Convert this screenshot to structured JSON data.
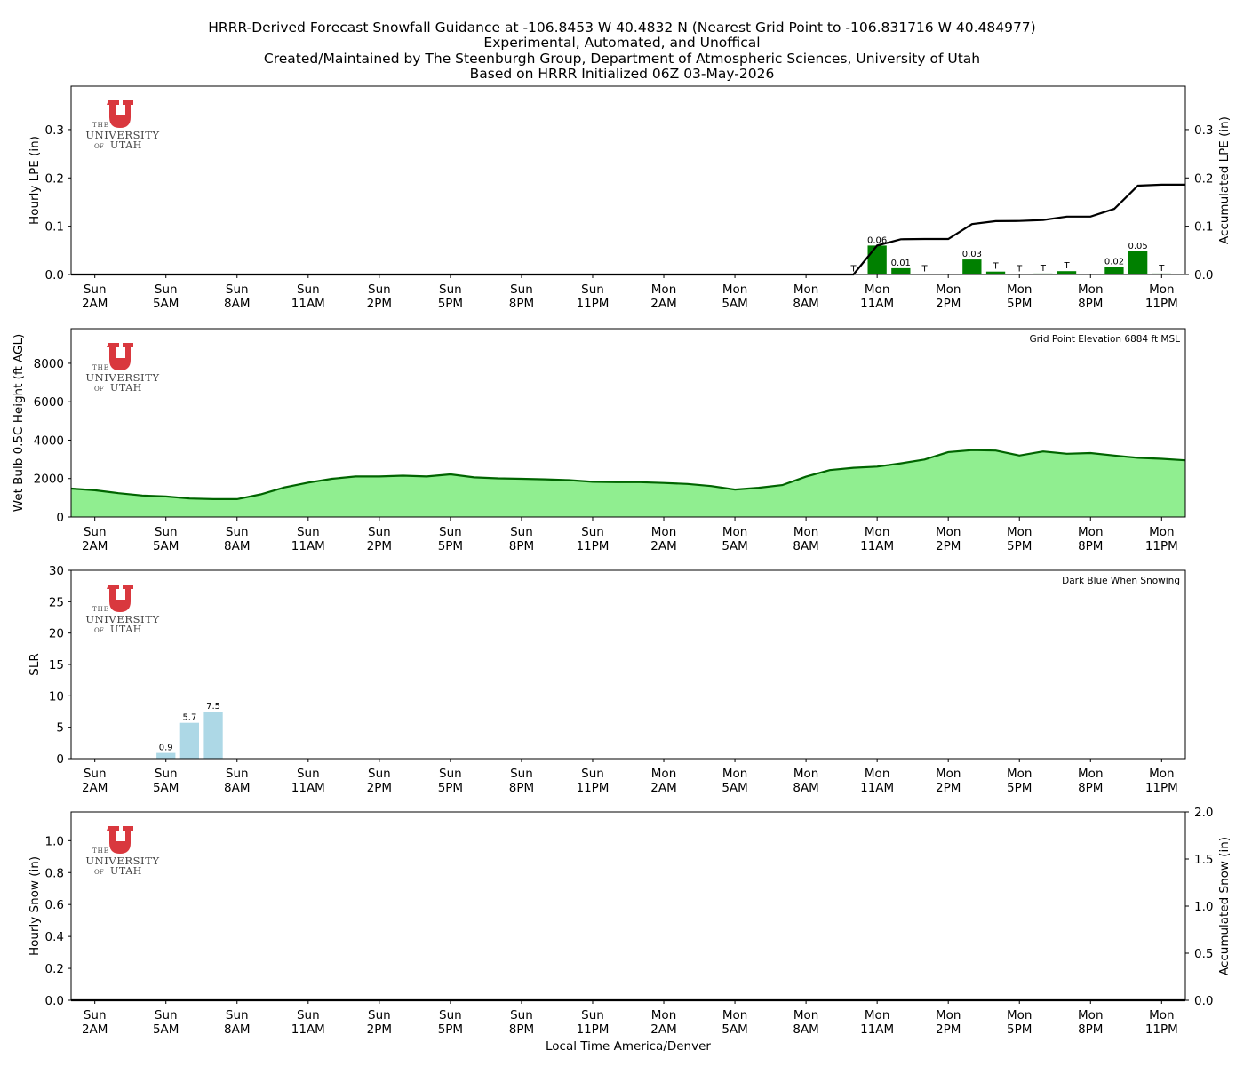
{
  "title_lines": [
    "HRRR-Derived Forecast Snowfall Guidance at -106.8453 W 40.4832 N (Nearest Grid Point to -106.831716 W 40.484977)",
    "Experimental, Automated, and Unoffical",
    "Created/Maintained by The Steenburgh Group, Department of Atmospheric Sciences, University of Utah",
    "Based on HRRR Initialized 06Z 03-May-2026"
  ],
  "logo": {
    "the": "THE",
    "university": "UNIVERSITY",
    "of": "OF",
    "utah": "UTAH",
    "color": "#d9383e"
  },
  "xlabel": "Local Time America/Denver",
  "x_ticks": [
    {
      "hour": 0,
      "day": "Sun",
      "time": "2AM"
    },
    {
      "hour": 3,
      "day": "Sun",
      "time": "5AM"
    },
    {
      "hour": 6,
      "day": "Sun",
      "time": "8AM"
    },
    {
      "hour": 9,
      "day": "Sun",
      "time": "11AM"
    },
    {
      "hour": 12,
      "day": "Sun",
      "time": "2PM"
    },
    {
      "hour": 15,
      "day": "Sun",
      "time": "5PM"
    },
    {
      "hour": 18,
      "day": "Sun",
      "time": "8PM"
    },
    {
      "hour": 21,
      "day": "Sun",
      "time": "11PM"
    },
    {
      "hour": 24,
      "day": "Mon",
      "time": "2AM"
    },
    {
      "hour": 27,
      "day": "Mon",
      "time": "5AM"
    },
    {
      "hour": 30,
      "day": "Mon",
      "time": "8AM"
    },
    {
      "hour": 33,
      "day": "Mon",
      "time": "11AM"
    },
    {
      "hour": 36,
      "day": "Mon",
      "time": "2PM"
    },
    {
      "hour": 39,
      "day": "Mon",
      "time": "5PM"
    },
    {
      "hour": 42,
      "day": "Mon",
      "time": "8PM"
    },
    {
      "hour": 45,
      "day": "Mon",
      "time": "11PM"
    }
  ],
  "chart_data": [
    {
      "type": "bar",
      "ylabel": "Hourly LPE (in)",
      "ylabel_right": "Accumulated LPE (in)",
      "xlim": [
        -1,
        46
      ],
      "ylim": [
        0,
        0.39
      ],
      "yticks": [
        0.0,
        0.1,
        0.2,
        0.3
      ],
      "ytick_labels": [
        "0.0",
        "0.1",
        "0.2",
        "0.3"
      ],
      "ylim_right": [
        0,
        0.39
      ],
      "yticks_right": [
        0.0,
        0.1,
        0.2,
        0.3
      ],
      "ytick_labels_right": [
        "0.0",
        "0.1",
        "0.2",
        "0.3"
      ],
      "bar_color": "#008000",
      "line_color": "#000000",
      "bars": [
        {
          "hour": 32,
          "value": 0.001,
          "label": "T"
        },
        {
          "hour": 33,
          "value": 0.06,
          "label": "0.06"
        },
        {
          "hour": 34,
          "value": 0.013,
          "label": "0.01"
        },
        {
          "hour": 35,
          "value": 0.0005,
          "label": "T"
        },
        {
          "hour": 37,
          "value": 0.031,
          "label": "0.03"
        },
        {
          "hour": 38,
          "value": 0.006,
          "label": "T"
        },
        {
          "hour": 39,
          "value": 0.0005,
          "label": "T"
        },
        {
          "hour": 40,
          "value": 0.002,
          "label": "T"
        },
        {
          "hour": 41,
          "value": 0.007,
          "label": "T"
        },
        {
          "hour": 43,
          "value": 0.016,
          "label": "0.02"
        },
        {
          "hour": 44,
          "value": 0.048,
          "label": "0.05"
        },
        {
          "hour": 45,
          "value": 0.002,
          "label": "T"
        }
      ],
      "accum_x": [
        -1,
        32,
        33,
        34,
        35,
        36,
        37,
        38,
        39,
        40,
        41,
        42,
        43,
        44,
        45,
        46
      ],
      "accum_y": [
        0,
        0,
        0.06,
        0.073,
        0.0735,
        0.0735,
        0.1045,
        0.1105,
        0.111,
        0.113,
        0.12,
        0.12,
        0.136,
        0.184,
        0.186,
        0.186
      ]
    },
    {
      "type": "area",
      "ylabel": "Wet Bulb 0.5C Height (ft AGL)",
      "annotation": "Grid Point Elevation 6884 ft MSL",
      "xlim": [
        -1,
        46
      ],
      "ylim": [
        0,
        9800
      ],
      "yticks": [
        0,
        2000,
        4000,
        6000,
        8000
      ],
      "ytick_labels": [
        "0",
        "2000",
        "4000",
        "6000",
        "8000"
      ],
      "fill_color": "#90ee90",
      "line_color": "#006400",
      "x": [
        -1,
        0,
        1,
        2,
        3,
        4,
        5,
        6,
        7,
        8,
        9,
        10,
        11,
        12,
        13,
        14,
        15,
        16,
        17,
        18,
        19,
        20,
        21,
        22,
        23,
        24,
        25,
        26,
        27,
        28,
        29,
        30,
        31,
        32,
        33,
        34,
        35,
        36,
        37,
        38,
        39,
        40,
        41,
        42,
        43,
        44,
        45,
        46
      ],
      "y": [
        1480,
        1390,
        1240,
        1120,
        1070,
        960,
        930,
        930,
        1180,
        1540,
        1790,
        1990,
        2110,
        2110,
        2150,
        2110,
        2220,
        2060,
        2010,
        1990,
        1960,
        1920,
        1830,
        1810,
        1810,
        1770,
        1720,
        1610,
        1430,
        1520,
        1660,
        2100,
        2440,
        2560,
        2620,
        2790,
        2990,
        3380,
        3480,
        3460,
        3200,
        3410,
        3290,
        3330,
        3200,
        3080,
        3030,
        2950
      ]
    },
    {
      "type": "bar",
      "ylabel": "SLR",
      "annotation": "Dark Blue When Snowing",
      "xlim": [
        -1,
        46
      ],
      "ylim": [
        0,
        30
      ],
      "yticks": [
        0,
        5,
        10,
        15,
        20,
        25,
        30
      ],
      "ytick_labels": [
        "0",
        "5",
        "10",
        "15",
        "20",
        "25",
        "30"
      ],
      "bar_color": "#add8e6",
      "bars": [
        {
          "hour": 3,
          "value": 0.9,
          "label": "0.9"
        },
        {
          "hour": 4,
          "value": 5.7,
          "label": "5.7"
        },
        {
          "hour": 5,
          "value": 7.5,
          "label": "7.5"
        }
      ]
    },
    {
      "type": "bar",
      "ylabel": "Hourly Snow (in)",
      "ylabel_right": "Accumulated Snow (in)",
      "xlim": [
        -1,
        46
      ],
      "ylim": [
        0,
        1.18
      ],
      "yticks": [
        0.0,
        0.2,
        0.4,
        0.6,
        0.8,
        1.0
      ],
      "ytick_labels": [
        "0.0",
        "0.2",
        "0.4",
        "0.6",
        "0.8",
        "1.0"
      ],
      "ylim_right": [
        0,
        2.0
      ],
      "yticks_right": [
        0.0,
        0.5,
        1.0,
        1.5,
        2.0
      ],
      "ytick_labels_right": [
        "0.0",
        "0.5",
        "1.0",
        "1.5",
        "2.0"
      ],
      "line_color": "#000000",
      "bars": [],
      "accum_x": [
        -1,
        46
      ],
      "accum_y": [
        0,
        0
      ]
    }
  ]
}
